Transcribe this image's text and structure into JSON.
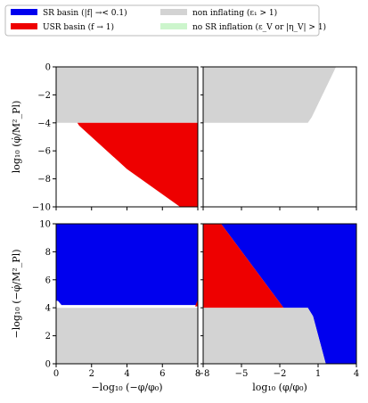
{
  "chart_data": {
    "type": "heatmap",
    "legend": {
      "placement": "top",
      "entries": [
        {
          "key": "sr",
          "label": "SR basin (|f| →< 0.1)",
          "color": "#0000ee"
        },
        {
          "key": "usr",
          "label": "USR basin (f → 1)",
          "color": "#ee0000"
        },
        {
          "key": "noninf",
          "label": "non inflating (ε₁ > 1)",
          "color": "#d3d3d3"
        },
        {
          "key": "nosr",
          "label": "no SR inflation (ε_V or |η_V| > 1)",
          "color": "#ccf5cc"
        }
      ]
    },
    "panels": [
      {
        "id": "top-left",
        "xlim": [
          0,
          8
        ],
        "ylim": [
          -10,
          0
        ],
        "xticks": [],
        "yticks": [
          "0",
          "−2",
          "−4",
          "−6",
          "−8",
          "−10"
        ],
        "ylabel": "log₁₀ (φ̇/M²_Pl)",
        "xlabel": "",
        "regions": [
          {
            "key": "noninf",
            "polygon": [
              [
                0,
                0
              ],
              [
                8,
                0
              ],
              [
                8,
                -4
              ],
              [
                0,
                -4
              ]
            ]
          },
          {
            "key": "usr",
            "polygon": [
              [
                1.2,
                -4
              ],
              [
                8,
                -4
              ],
              [
                8,
                -10
              ],
              [
                7,
                -10
              ],
              [
                4,
                -7.3
              ],
              [
                1.3,
                -4.2
              ]
            ]
          }
        ]
      },
      {
        "id": "top-right",
        "xlim": [
          -8,
          4
        ],
        "ylim": [
          -10,
          0
        ],
        "xticks": [],
        "yticks": [],
        "ylabel": "",
        "xlabel": "",
        "regions": [
          {
            "key": "noninf",
            "polygon": [
              [
                -8,
                0
              ],
              [
                2.4,
                0
              ],
              [
                0.5,
                -3.6
              ],
              [
                0.2,
                -4
              ],
              [
                -8,
                -4
              ]
            ]
          }
        ]
      },
      {
        "id": "bottom-left",
        "xlim": [
          0,
          8
        ],
        "ylim": [
          0,
          10
        ],
        "xticks": [
          "0",
          "2",
          "4",
          "6",
          "8"
        ],
        "yticks": [
          "0",
          "2",
          "4",
          "6",
          "8",
          "10"
        ],
        "ylabel": "−log₁₀ (−φ̇/M²_Pl)",
        "xlabel": "−log₁₀ (−φ/φ₀)",
        "regions": [
          {
            "key": "sr",
            "polygon": [
              [
                0,
                10
              ],
              [
                8,
                10
              ],
              [
                8,
                4.5
              ],
              [
                7.9,
                4.2
              ],
              [
                0.3,
                4.2
              ],
              [
                0.1,
                4.5
              ],
              [
                0,
                4.5
              ]
            ]
          },
          {
            "key": "usr",
            "polygon": [
              [
                7.85,
                4.1
              ],
              [
                8,
                4.6
              ],
              [
                8,
                4.1
              ]
            ]
          },
          {
            "key": "noninf",
            "polygon": [
              [
                0,
                4
              ],
              [
                8,
                4
              ],
              [
                8,
                0
              ],
              [
                0,
                0
              ]
            ]
          }
        ]
      },
      {
        "id": "bottom-right",
        "xlim": [
          -8,
          4
        ],
        "ylim": [
          0,
          10
        ],
        "xticks": [
          "−8",
          "−5",
          "−2",
          "1",
          "4"
        ],
        "yticks": [],
        "ylabel": "",
        "xlabel": "log₁₀ (φ/φ₀)",
        "regions": [
          {
            "key": "sr",
            "polygon": [
              [
                -6.6,
                10
              ],
              [
                4,
                10
              ],
              [
                4,
                0
              ],
              [
                1.6,
                0
              ],
              [
                0.6,
                3.4
              ],
              [
                0.2,
                4
              ],
              [
                -1.7,
                4
              ],
              [
                -6.6,
                10
              ]
            ]
          },
          {
            "key": "usr",
            "polygon": [
              [
                -8,
                10
              ],
              [
                -6.6,
                10
              ],
              [
                -1.7,
                4
              ],
              [
                -8,
                4
              ]
            ]
          },
          {
            "key": "noninf",
            "polygon": [
              [
                -8,
                4
              ],
              [
                0.2,
                4
              ],
              [
                0.6,
                3.4
              ],
              [
                1.6,
                0
              ],
              [
                -8,
                0
              ]
            ]
          }
        ]
      }
    ]
  }
}
